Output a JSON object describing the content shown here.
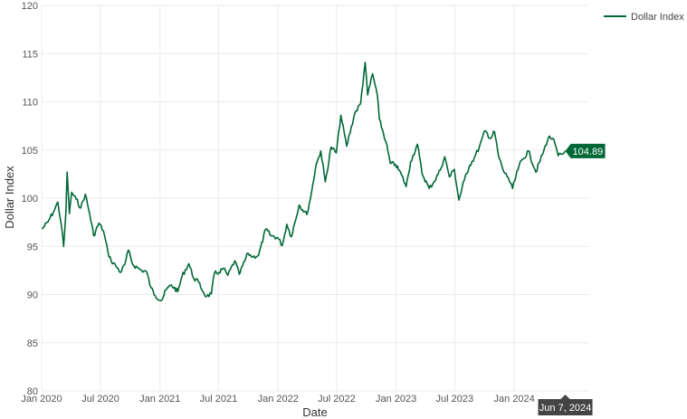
{
  "chart_data": {
    "type": "line",
    "xlabel": "Date",
    "ylabel": "Dollar Index",
    "ylim": [
      80,
      120
    ],
    "yticks": [
      80,
      85,
      90,
      95,
      100,
      105,
      110,
      115,
      120
    ],
    "xlim": [
      "2020-01-01",
      "2024-08-20"
    ],
    "xticks": [
      {
        "date": "2020-01-01",
        "label": "Jan 2020"
      },
      {
        "date": "2020-07-01",
        "label": "Jul 2020"
      },
      {
        "date": "2021-01-01",
        "label": "Jan 2021"
      },
      {
        "date": "2021-07-01",
        "label": "Jul 2021"
      },
      {
        "date": "2022-01-01",
        "label": "Jan 2022"
      },
      {
        "date": "2022-07-01",
        "label": "Jul 2022"
      },
      {
        "date": "2023-01-01",
        "label": "Jan 2023"
      },
      {
        "date": "2023-07-01",
        "label": "Jul 2023"
      },
      {
        "date": "2024-01-01",
        "label": "Jan 2024"
      }
    ],
    "grid": true,
    "legend_position": "top-right",
    "series": [
      {
        "name": "Dollar Index",
        "color": "#006837",
        "points": [
          [
            "2020-01-02",
            96.8
          ],
          [
            "2020-01-20",
            97.5
          ],
          [
            "2020-02-10",
            98.8
          ],
          [
            "2020-02-20",
            99.6
          ],
          [
            "2020-03-02",
            97.2
          ],
          [
            "2020-03-09",
            95.0
          ],
          [
            "2020-03-16",
            98.5
          ],
          [
            "2020-03-20",
            102.7
          ],
          [
            "2020-03-27",
            98.4
          ],
          [
            "2020-04-03",
            100.6
          ],
          [
            "2020-04-17",
            99.9
          ],
          [
            "2020-05-01",
            99.0
          ],
          [
            "2020-05-15",
            100.4
          ],
          [
            "2020-05-29",
            98.3
          ],
          [
            "2020-06-10",
            96.1
          ],
          [
            "2020-06-26",
            97.4
          ],
          [
            "2020-07-10",
            96.6
          ],
          [
            "2020-07-24",
            94.4
          ],
          [
            "2020-08-03",
            93.5
          ],
          [
            "2020-08-17",
            93.0
          ],
          [
            "2020-09-01",
            92.3
          ],
          [
            "2020-09-14",
            93.1
          ],
          [
            "2020-09-25",
            94.6
          ],
          [
            "2020-10-09",
            93.1
          ],
          [
            "2020-10-23",
            92.8
          ],
          [
            "2020-11-05",
            92.5
          ],
          [
            "2020-11-20",
            92.4
          ],
          [
            "2020-12-04",
            90.7
          ],
          [
            "2020-12-17",
            89.9
          ],
          [
            "2021-01-06",
            89.4
          ],
          [
            "2021-01-20",
            90.5
          ],
          [
            "2021-02-05",
            91.0
          ],
          [
            "2021-02-25",
            90.3
          ],
          [
            "2021-03-10",
            91.9
          ],
          [
            "2021-03-31",
            93.2
          ],
          [
            "2021-04-15",
            91.7
          ],
          [
            "2021-04-30",
            91.3
          ],
          [
            "2021-05-14",
            90.3
          ],
          [
            "2021-05-25",
            89.8
          ],
          [
            "2021-06-09",
            90.1
          ],
          [
            "2021-06-18",
            92.2
          ],
          [
            "2021-07-02",
            92.3
          ],
          [
            "2021-07-15",
            92.7
          ],
          [
            "2021-07-30",
            92.0
          ],
          [
            "2021-08-20",
            93.5
          ],
          [
            "2021-09-03",
            92.1
          ],
          [
            "2021-09-30",
            94.3
          ],
          [
            "2021-10-15",
            93.9
          ],
          [
            "2021-11-02",
            94.1
          ],
          [
            "2021-11-24",
            96.8
          ],
          [
            "2021-12-10",
            96.1
          ],
          [
            "2021-12-31",
            95.9
          ],
          [
            "2022-01-14",
            95.1
          ],
          [
            "2022-01-28",
            97.3
          ],
          [
            "2022-02-11",
            96.0
          ],
          [
            "2022-03-07",
            99.3
          ],
          [
            "2022-03-31",
            98.3
          ],
          [
            "2022-04-14",
            100.5
          ],
          [
            "2022-04-28",
            103.4
          ],
          [
            "2022-05-13",
            104.9
          ],
          [
            "2022-05-27",
            101.7
          ],
          [
            "2022-06-14",
            105.3
          ],
          [
            "2022-06-30",
            104.7
          ],
          [
            "2022-07-14",
            108.6
          ],
          [
            "2022-08-01",
            105.4
          ],
          [
            "2022-08-26",
            108.8
          ],
          [
            "2022-09-13",
            109.8
          ],
          [
            "2022-09-27",
            114.1
          ],
          [
            "2022-10-05",
            110.7
          ],
          [
            "2022-10-20",
            112.9
          ],
          [
            "2022-11-04",
            110.7
          ],
          [
            "2022-11-10",
            108.2
          ],
          [
            "2022-11-30",
            105.9
          ],
          [
            "2022-12-14",
            103.6
          ],
          [
            "2022-12-30",
            103.5
          ],
          [
            "2023-01-18",
            102.4
          ],
          [
            "2023-02-01",
            101.2
          ],
          [
            "2023-02-15",
            103.8
          ],
          [
            "2023-03-08",
            105.6
          ],
          [
            "2023-03-22",
            102.6
          ],
          [
            "2023-04-13",
            101.0
          ],
          [
            "2023-04-28",
            101.7
          ],
          [
            "2023-05-17",
            102.9
          ],
          [
            "2023-05-31",
            104.3
          ],
          [
            "2023-06-15",
            102.2
          ],
          [
            "2023-06-30",
            103.0
          ],
          [
            "2023-07-14",
            99.8
          ],
          [
            "2023-07-31",
            101.9
          ],
          [
            "2023-08-16",
            103.4
          ],
          [
            "2023-08-31",
            104.2
          ],
          [
            "2023-09-15",
            105.3
          ],
          [
            "2023-10-03",
            107.0
          ],
          [
            "2023-10-20",
            106.2
          ],
          [
            "2023-11-01",
            106.9
          ],
          [
            "2023-11-14",
            104.3
          ],
          [
            "2023-11-29",
            102.8
          ],
          [
            "2023-12-14",
            102.1
          ],
          [
            "2023-12-27",
            101.0
          ],
          [
            "2024-01-16",
            103.4
          ],
          [
            "2024-02-14",
            104.9
          ],
          [
            "2024-03-08",
            102.7
          ],
          [
            "2024-03-28",
            104.5
          ],
          [
            "2024-04-16",
            106.3
          ],
          [
            "2024-04-30",
            106.2
          ],
          [
            "2024-05-16",
            104.4
          ],
          [
            "2024-05-31",
            104.6
          ],
          [
            "2024-06-07",
            104.89
          ]
        ]
      }
    ],
    "annotations": {
      "last_value_label": "104.89",
      "hover_date_label": "Jun 7, 2024"
    }
  }
}
